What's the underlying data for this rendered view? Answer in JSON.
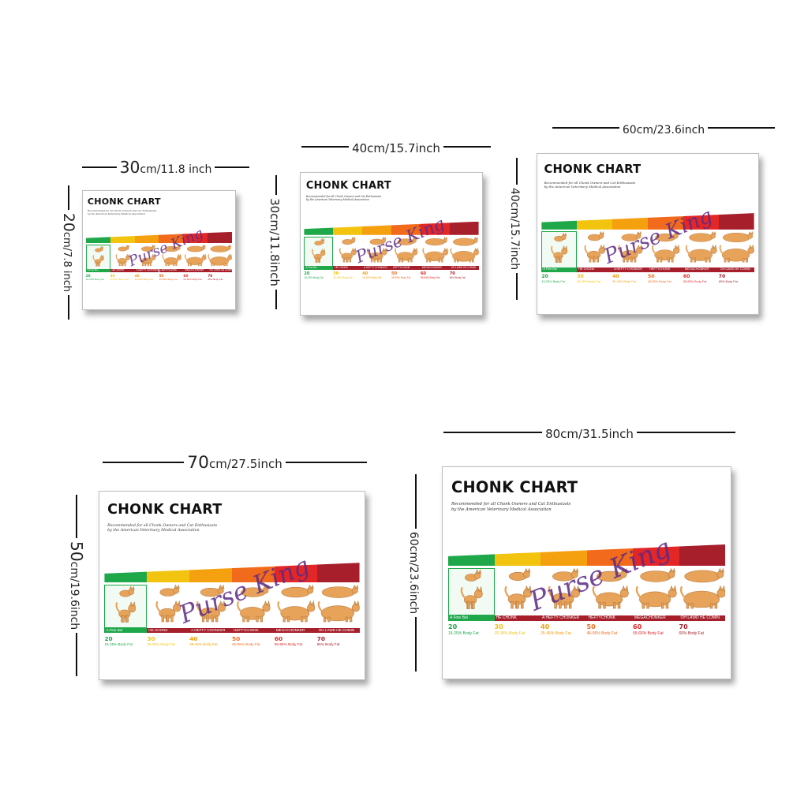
{
  "sizes": [
    {
      "width_label_num": "30",
      "width_label_rest": "cm/11.8 inch",
      "height_label_num": "20",
      "height_label_rest": "cm/7.8 inch"
    },
    {
      "width_label_num": "",
      "width_label_rest": "40cm/15.7inch",
      "height_label_num": "",
      "height_label_rest": "30cm/11.8inch"
    },
    {
      "width_label_num": "",
      "width_label_rest": "60cm/23.6inch",
      "height_label_num": "",
      "height_label_rest": "40cm/15.7inch"
    },
    {
      "width_label_num": "70",
      "width_label_rest": "cm/27.5inch",
      "height_label_num": "50",
      "height_label_rest": "cm/19.6inch"
    },
    {
      "width_label_num": "",
      "width_label_rest": "80cm/31.5inch",
      "height_label_num": "",
      "height_label_rest": "60cm/23.6inch"
    }
  ],
  "poster": {
    "title": "CHONK CHART",
    "subtitle_line1": "Recommended for all Chonk Owners and Cat Enthusiasts",
    "subtitle_line2": "by the American Veterinary Medical Association",
    "watermark": "Purse King",
    "categories": [
      {
        "label": "A Fine Boi",
        "score": "20",
        "fat": "15-25% Body Fat",
        "color": "#1fa84a"
      },
      {
        "label": "HE CHONK",
        "score": "30",
        "fat": "25-35% Body Fat",
        "color": "#f2c40f"
      },
      {
        "label": "A HEFTY CHONKER",
        "score": "40",
        "fat": "35-45% Body Fat",
        "color": "#f5a00f"
      },
      {
        "label": "HEFTYCHONK",
        "score": "50",
        "fat": "45-55% Body Fat",
        "color": "#f26a1b"
      },
      {
        "label": "MEGACHONKER",
        "score": "60",
        "fat": "55-65% Body Fat",
        "color": "#e32626"
      },
      {
        "label": "OH LAWD HE COMIN",
        "score": "70",
        "fat": "65% Body Fat",
        "color": "#a61f2b"
      }
    ]
  },
  "colors": {
    "label_bg_dark": "#a61f2b",
    "highlight_border": "#1fa84a",
    "cat_fur": "#e8a35a"
  }
}
